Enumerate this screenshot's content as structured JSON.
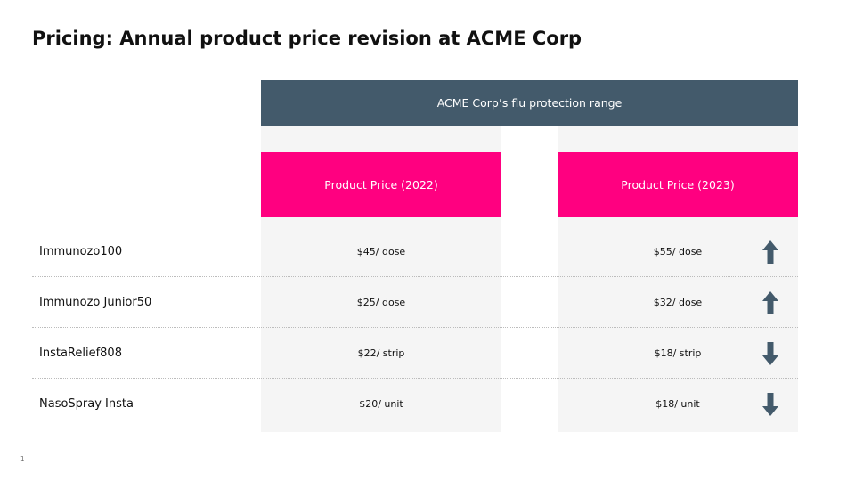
{
  "title": "Pricing: Annual product price revision at ACME Corp",
  "range_header": "ACME Corp’s flu protection range",
  "columns": [
    "Product Price (2022)",
    "Product Price (2023)"
  ],
  "rows": [
    {
      "name": "Immunozo100",
      "price_2022": "$45/ dose",
      "price_2023": "$55/ dose",
      "trend": "up-arrow-icon"
    },
    {
      "name": "Immunozo Junior50",
      "price_2022": "$25/ dose",
      "price_2023": "$32/ dose",
      "trend": "up-arrow-icon"
    },
    {
      "name": "InstaRelief808",
      "price_2022": "$22/ strip",
      "price_2023": "$18/ strip",
      "trend": "down-arrow-icon"
    },
    {
      "name": "NasoSpray Insta",
      "price_2022": "$20/ unit",
      "price_2023": "$18/ unit",
      "trend": "down-arrow-icon"
    }
  ],
  "page_number": "1",
  "colors": {
    "header_bg": "#435a6b",
    "column_header_bg": "#ff0080",
    "column_bg": "#f5f5f5",
    "arrow": "#435a6b"
  }
}
